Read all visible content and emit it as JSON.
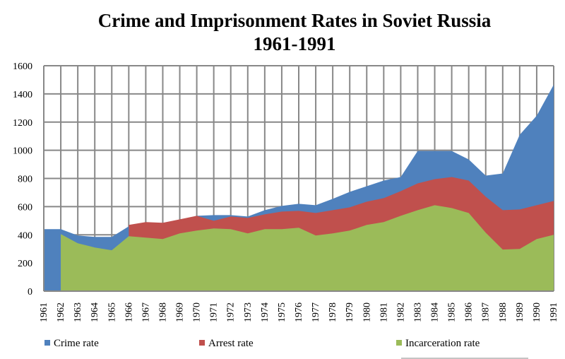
{
  "chart_data": {
    "type": "area",
    "title": "Crime and Imprisonment Rates in Soviet Russia",
    "subtitle": "1961-1991",
    "xlabel": "",
    "ylabel": "",
    "ylim": [
      0,
      1600
    ],
    "yticks": [
      0,
      200,
      400,
      600,
      800,
      1000,
      1200,
      1400,
      1600
    ],
    "grid": true,
    "stacked": false,
    "legend_position": "bottom",
    "categories": [
      "1961",
      "1962",
      "1963",
      "1964",
      "1965",
      "1966",
      "1967",
      "1968",
      "1969",
      "1970",
      "1971",
      "1972",
      "1973",
      "1974",
      "1975",
      "1976",
      "1977",
      "1978",
      "1979",
      "1980",
      "1981",
      "1982",
      "1983",
      "1984",
      "1985",
      "1986",
      "1987",
      "1988",
      "1989",
      "1990",
      "1991"
    ],
    "series": [
      {
        "name": "Crime rate",
        "color": "#4f81bd",
        "values": [
          440,
          440,
          395,
          385,
          385,
          460,
          480,
          480,
          505,
          535,
          540,
          540,
          530,
          575,
          605,
          620,
          610,
          655,
          705,
          745,
          785,
          810,
          995,
          995,
          995,
          935,
          820,
          835,
          1110,
          1245,
          1465
        ]
      },
      {
        "name": "Arrest rate",
        "color": "#c0504d",
        "values": [
          0,
          0,
          0,
          0,
          0,
          470,
          490,
          485,
          510,
          535,
          500,
          530,
          520,
          545,
          565,
          570,
          555,
          575,
          595,
          635,
          660,
          710,
          765,
          795,
          810,
          785,
          670,
          575,
          580,
          610,
          640
        ]
      },
      {
        "name": "Incarceration rate",
        "color": "#9bbb59",
        "values": [
          0,
          405,
          340,
          310,
          290,
          390,
          380,
          370,
          410,
          430,
          445,
          440,
          410,
          440,
          440,
          450,
          395,
          410,
          430,
          470,
          490,
          535,
          575,
          610,
          590,
          555,
          415,
          295,
          300,
          370,
          400
        ]
      }
    ]
  }
}
